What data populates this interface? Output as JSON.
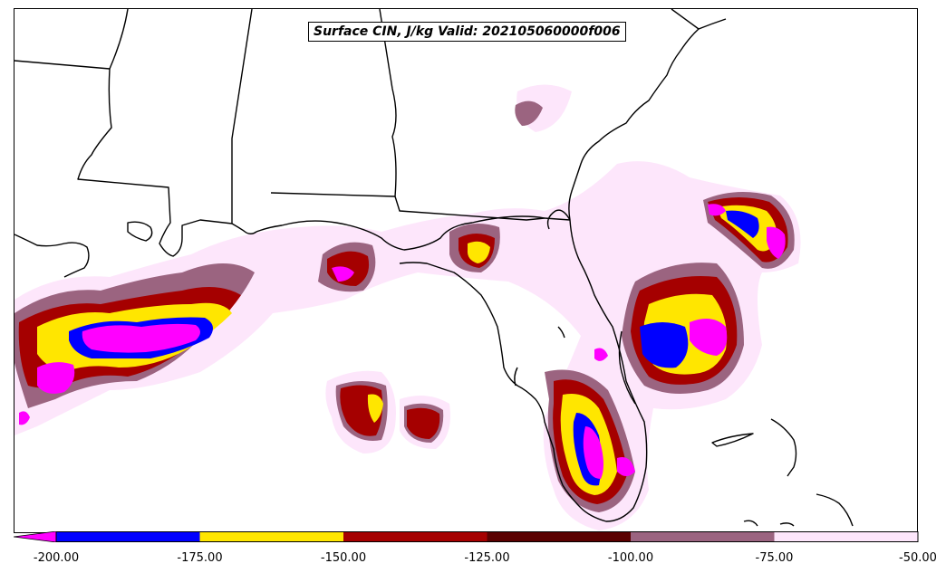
{
  "title": "Surface CIN, J/kg Valid: 202105060000f006",
  "colorbar": {
    "ticks": [
      "-200.00",
      "-175.00",
      "-150.00",
      "-125.00",
      "-100.00",
      "-75.00",
      "-50.00"
    ],
    "levels": [
      {
        "from": -200,
        "to": -175,
        "color": "#0000ff"
      },
      {
        "from": -175,
        "to": -150,
        "color": "#ffe600"
      },
      {
        "from": -150,
        "to": -125,
        "color": "#a50000"
      },
      {
        "from": -125,
        "to": -100,
        "color": "#5a0000"
      },
      {
        "from": -100,
        "to": -75,
        "color": "#9b6480"
      },
      {
        "from": -75,
        "to": -50,
        "color": "#fde6fb"
      }
    ],
    "extend_low_color": "#ff00ff"
  },
  "colors": {
    "coastline": "#000000",
    "background": "#ffffff"
  }
}
